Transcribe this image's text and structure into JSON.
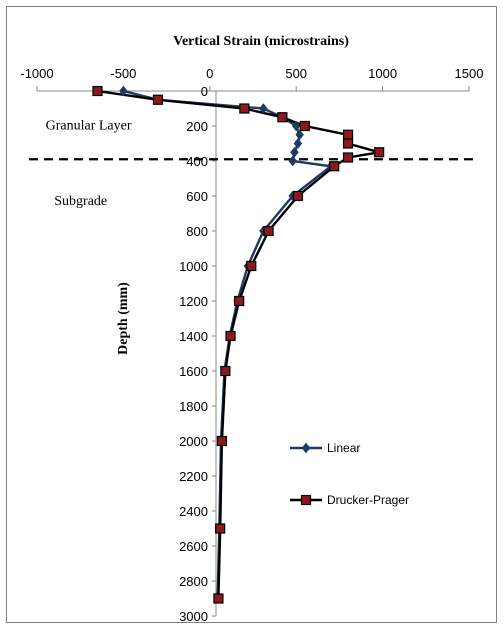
{
  "chart_data": {
    "type": "line",
    "title": "Vertical Strain (microstrains)",
    "xlabel": "",
    "ylabel": "Depth (mm)",
    "xlim": [
      -1000,
      1500
    ],
    "ylim": [
      0,
      3000
    ],
    "y_reversed": true,
    "x_axis_position": "top",
    "x_ticks": [
      -1000,
      -500,
      0,
      500,
      1000,
      1500
    ],
    "y_ticks": [
      0,
      200,
      400,
      600,
      800,
      1000,
      1200,
      1400,
      1600,
      1800,
      2000,
      2200,
      2400,
      2600,
      2800,
      3000
    ],
    "x_tick_labels": [
      "-1000",
      "-500",
      "0",
      "500",
      "1000",
      "1500"
    ],
    "y_tick_labels": [
      "0",
      "200",
      "400",
      "600",
      "800",
      "1000",
      "1200",
      "1400",
      "1600",
      "1800",
      "2000",
      "2200",
      "2400",
      "2600",
      "2800",
      "3000"
    ],
    "grid": false,
    "legend_position": "bottom-right",
    "series": [
      {
        "name": "Linear",
        "color": "#1f3864",
        "marker": "diamond",
        "points": [
          [
            -500,
            0
          ],
          [
            -300,
            50
          ],
          [
            310,
            100
          ],
          [
            420,
            150
          ],
          [
            500,
            200
          ],
          [
            520,
            250
          ],
          [
            510,
            300
          ],
          [
            490,
            350
          ],
          [
            480,
            400
          ],
          [
            700,
            430
          ],
          [
            480,
            600
          ],
          [
            310,
            800
          ],
          [
            220,
            1000
          ],
          [
            160,
            1200
          ],
          [
            115,
            1400
          ],
          [
            85,
            1600
          ],
          [
            65,
            2000
          ],
          [
            55,
            2500
          ],
          [
            45,
            2900
          ]
        ]
      },
      {
        "name": "Drucker-Prager",
        "color": "#000000",
        "marker": "square",
        "points": [
          [
            -650,
            0
          ],
          [
            -300,
            50
          ],
          [
            200,
            100
          ],
          [
            420,
            150
          ],
          [
            550,
            200
          ],
          [
            800,
            250
          ],
          [
            800,
            300
          ],
          [
            980,
            350
          ],
          [
            800,
            380
          ],
          [
            720,
            430
          ],
          [
            510,
            600
          ],
          [
            340,
            800
          ],
          [
            240,
            1000
          ],
          [
            170,
            1200
          ],
          [
            120,
            1400
          ],
          [
            90,
            1600
          ],
          [
            70,
            2000
          ],
          [
            60,
            2500
          ],
          [
            50,
            2900
          ]
        ]
      }
    ],
    "annotations": [
      {
        "text": "Granular Layer",
        "x": -950,
        "y": 220
      },
      {
        "text": "Subgrade",
        "x": -900,
        "y": 650
      }
    ],
    "reference_lines": [
      {
        "orientation": "horizontal",
        "style": "dashed",
        "y": 390
      }
    ]
  }
}
